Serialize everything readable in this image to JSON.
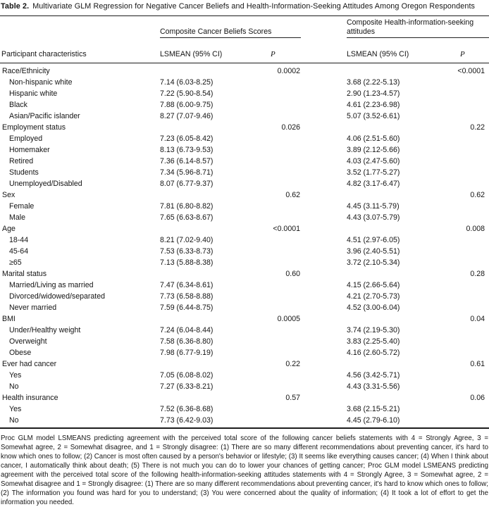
{
  "title": {
    "label": "Table 2.",
    "text": "Multivariate GLM Regression for Negative Cancer Beliefs and Health-Information-Seeking Attitudes Among Oregon Respondents"
  },
  "table": {
    "spanner1": "Composite Cancer Beliefs Scores",
    "spanner2": "Composite Health-information-seeking attitudes",
    "participant_header": "Participant characteristics",
    "lsmean_header_1": "LSMEAN (95% CI)",
    "p_header_1": "P",
    "lsmean_header_2": "LSMEAN (95% CI)",
    "p_header_2": "P",
    "rows": [
      {
        "label": "Race/Ethnicity",
        "indent": false,
        "lsmean1": "",
        "p1": "0.0002",
        "lsmean2": "",
        "p2": "<0.0001"
      },
      {
        "label": "Non-hispanic white",
        "indent": true,
        "lsmean1": "7.14 (6.03-8.25)",
        "p1": "",
        "lsmean2": "3.68 (2.22-5.13)",
        "p2": ""
      },
      {
        "label": "Hispanic white",
        "indent": true,
        "lsmean1": "7.22 (5.90-8.54)",
        "p1": "",
        "lsmean2": "2.90 (1.23-4.57)",
        "p2": ""
      },
      {
        "label": "Black",
        "indent": true,
        "lsmean1": "7.88 (6.00-9.75)",
        "p1": "",
        "lsmean2": "4.61 (2.23-6.98)",
        "p2": ""
      },
      {
        "label": "Asian/Pacific islander",
        "indent": true,
        "lsmean1": "8.27 (7.07-9.46)",
        "p1": "",
        "lsmean2": "5.07 (3.52-6.61)",
        "p2": ""
      },
      {
        "label": "Employment status",
        "indent": false,
        "lsmean1": "",
        "p1": "0.026",
        "lsmean2": "",
        "p2": "0.22"
      },
      {
        "label": "Employed",
        "indent": true,
        "lsmean1": "7.23 (6.05-8.42)",
        "p1": "",
        "lsmean2": "4.06 (2.51-5.60)",
        "p2": ""
      },
      {
        "label": "Homemaker",
        "indent": true,
        "lsmean1": "8.13 (6.73-9.53)",
        "p1": "",
        "lsmean2": "3.89 (2.12-5.66)",
        "p2": ""
      },
      {
        "label": "Retired",
        "indent": true,
        "lsmean1": "7.36 (6.14-8.57)",
        "p1": "",
        "lsmean2": "4.03 (2.47-5.60)",
        "p2": ""
      },
      {
        "label": "Students",
        "indent": true,
        "lsmean1": "7.34 (5.96-8.71)",
        "p1": "",
        "lsmean2": "3.52 (1.77-5.27)",
        "p2": ""
      },
      {
        "label": "Unemployed/Disabled",
        "indent": true,
        "lsmean1": "8.07 (6.77-9.37)",
        "p1": "",
        "lsmean2": "4.82 (3.17-6.47)",
        "p2": ""
      },
      {
        "label": "Sex",
        "indent": false,
        "lsmean1": "",
        "p1": "0.62",
        "lsmean2": "",
        "p2": "0.62"
      },
      {
        "label": "Female",
        "indent": true,
        "lsmean1": "7.81 (6.80-8.82)",
        "p1": "",
        "lsmean2": "4.45 (3.11-5.79)",
        "p2": ""
      },
      {
        "label": "Male",
        "indent": true,
        "lsmean1": "7.65 (6.63-8.67)",
        "p1": "",
        "lsmean2": "4.43 (3.07-5.79)",
        "p2": ""
      },
      {
        "label": "Age",
        "indent": false,
        "lsmean1": "",
        "p1": "<0.0001",
        "lsmean2": "",
        "p2": "0.008"
      },
      {
        "label": "18-44",
        "indent": true,
        "lsmean1": "8.21 (7.02-9.40)",
        "p1": "",
        "lsmean2": "4.51 (2.97-6.05)",
        "p2": ""
      },
      {
        "label": "45-64",
        "indent": true,
        "lsmean1": "7.53 (6.33-8.73)",
        "p1": "",
        "lsmean2": "3.96 (2.40-5.51)",
        "p2": ""
      },
      {
        "label": "≥65",
        "indent": true,
        "lsmean1": "7.13 (5.88-8.38)",
        "p1": "",
        "lsmean2": "3.72 (2.10-5.34)",
        "p2": ""
      },
      {
        "label": "Marital status",
        "indent": false,
        "lsmean1": "",
        "p1": "0.60",
        "lsmean2": "",
        "p2": "0.28"
      },
      {
        "label": "Married/Living as married",
        "indent": true,
        "lsmean1": "7.47 (6.34-8.61)",
        "p1": "",
        "lsmean2": "4.15 (2.66-5.64)",
        "p2": ""
      },
      {
        "label": "Divorced/widowed/separated",
        "indent": true,
        "lsmean1": "7.73 (6.58-8.88)",
        "p1": "",
        "lsmean2": "4.21 (2.70-5.73)",
        "p2": ""
      },
      {
        "label": "Never married",
        "indent": true,
        "lsmean1": "7.59 (6.44-8.75)",
        "p1": "",
        "lsmean2": "4.52 (3.00-6.04)",
        "p2": ""
      },
      {
        "label": "BMI",
        "indent": false,
        "lsmean1": "",
        "p1": "0.0005",
        "lsmean2": "",
        "p2": "0.04"
      },
      {
        "label": "Under/Healthy weight",
        "indent": true,
        "lsmean1": "7.24 (6.04-8.44)",
        "p1": "",
        "lsmean2": "3.74 (2.19-5.30)",
        "p2": ""
      },
      {
        "label": "Overweight",
        "indent": true,
        "lsmean1": "7.58 (6.36-8.80)",
        "p1": "",
        "lsmean2": "3.83 (2.25-5.40)",
        "p2": ""
      },
      {
        "label": "Obese",
        "indent": true,
        "lsmean1": "7.98 (6.77-9.19)",
        "p1": "",
        "lsmean2": "4.16 (2.60-5.72)",
        "p2": ""
      },
      {
        "label": "Ever had cancer",
        "indent": false,
        "lsmean1": "",
        "p1": "0.22",
        "lsmean2": "",
        "p2": "0.61"
      },
      {
        "label": "Yes",
        "indent": true,
        "lsmean1": "7.05 (6.08-8.02)",
        "p1": "",
        "lsmean2": "4.56 (3.42-5.71)",
        "p2": ""
      },
      {
        "label": "No",
        "indent": true,
        "lsmean1": "7.27 (6.33-8.21)",
        "p1": "",
        "lsmean2": "4.43 (3.31-5.56)",
        "p2": ""
      },
      {
        "label": "Health insurance",
        "indent": false,
        "lsmean1": "",
        "p1": "0.57",
        "lsmean2": "",
        "p2": "0.06"
      },
      {
        "label": "Yes",
        "indent": true,
        "lsmean1": "7.52 (6.36-8.68)",
        "p1": "",
        "lsmean2": "3.68 (2.15-5.21)",
        "p2": ""
      },
      {
        "label": "No",
        "indent": true,
        "lsmean1": "7.73 (6.42-9.03)",
        "p1": "",
        "lsmean2": "4.45 (2.79-6.10)",
        "p2": ""
      }
    ]
  },
  "footnote": "Proc GLM model LSMEANS predicting agreement with the perceived total score of the following cancer beliefs statements with 4 = Strongly Agree, 3 = Somewhat agree, 2 = Somewhat disagree, and 1 = Strongly disagree: (1) There are so many different recommendations about preventing cancer, it's hard to know which ones to follow; (2) Cancer is most often caused by a person's behavior or lifestyle; (3) It seems like everything causes cancer; (4) When I think about cancer, I automatically think about death; (5) There is not much you can do to lower your chances of getting cancer; Proc GLM model LSMEANS predicting agreement with the perceived total score of the following health-information-seeking attitudes statements with 4 = Strongly Agree, 3 = Somewhat agree, 2 = Somewhat disagree and 1 = Strongly disagree: (1) There are so many different recommendations about preventing cancer, it's hard to know which ones to follow; (2) The information you found was hard for you to understand; (3) You were concerned about the quality of information; (4) It took a lot of effort to get the information you needed."
}
